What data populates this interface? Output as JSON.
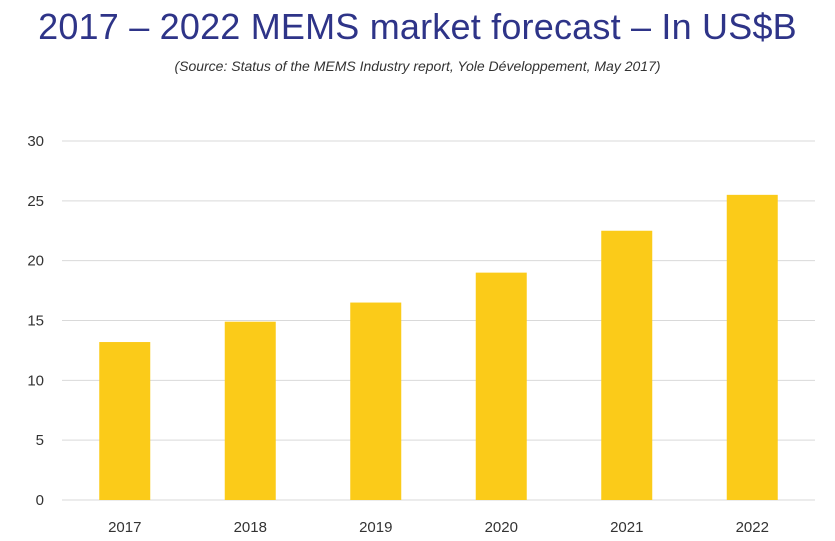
{
  "page": {
    "title": "2017 – 2022 MEMS market forecast – In US$B",
    "subtitle": "(Source: Status of the MEMS Industry report, Yole Développement, May 2017)"
  },
  "colors": {
    "title": "#2E3488",
    "bar": "#FBCB19",
    "grid": "#D9D9D9",
    "text": "#333333"
  },
  "chart_data": {
    "type": "bar",
    "title": "2017 – 2022 MEMS market forecast – In US$B",
    "subtitle": "(Source: Status of the MEMS Industry report, Yole Développement, May 2017)",
    "xlabel": "",
    "ylabel": "",
    "categories": [
      "2017",
      "2018",
      "2019",
      "2020",
      "2021",
      "2022"
    ],
    "values": [
      13.2,
      14.9,
      16.5,
      19,
      22.5,
      25.5
    ],
    "ylim": [
      0,
      30
    ],
    "yticks": [
      0,
      5,
      10,
      15,
      20,
      25,
      30
    ],
    "grid": true,
    "legend": "none"
  }
}
